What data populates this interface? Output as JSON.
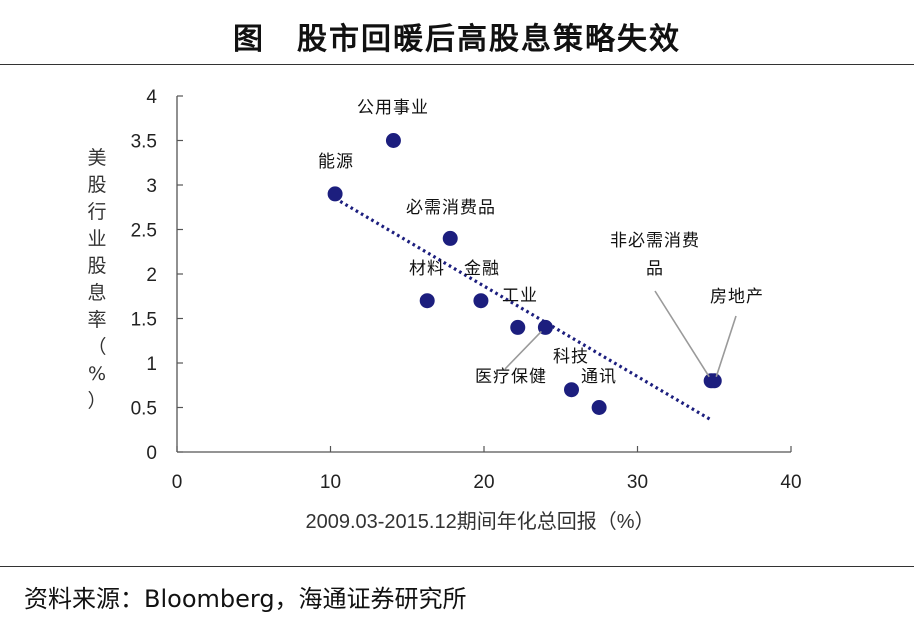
{
  "title": "图　股市回暖后高股息策略失效",
  "source": "资料来源：Bloomberg，海通证券研究所",
  "chart_data": {
    "type": "scatter",
    "xlabel": "2009.03-2015.12期间年化总回报（%）",
    "ylabel": "美股行业股息率（%）",
    "xlim": [
      0,
      40
    ],
    "ylim": [
      0,
      4
    ],
    "xticks": [
      0,
      10,
      20,
      30,
      40
    ],
    "yticks": [
      0,
      0.5,
      1,
      1.5,
      2,
      2.5,
      3,
      3.5,
      4
    ],
    "marker_color": "#1c1e7e",
    "trendline": {
      "style": "dotted",
      "color": "#1c1e7e",
      "x": [
        10.3,
        34.8
      ],
      "y": [
        2.85,
        0.36
      ]
    },
    "points": [
      {
        "label": "公用事业",
        "x": 14.1,
        "y": 3.5
      },
      {
        "label": "能源",
        "x": 10.3,
        "y": 2.9
      },
      {
        "label": "必需消费品",
        "x": 17.8,
        "y": 2.4
      },
      {
        "label": "材料",
        "x": 16.3,
        "y": 1.7
      },
      {
        "label": "金融",
        "x": 19.8,
        "y": 1.7
      },
      {
        "label": "工业",
        "x": 22.2,
        "y": 1.4
      },
      {
        "label": "医疗保健",
        "x": 24.0,
        "y": 1.4
      },
      {
        "label": "科技",
        "x": 25.7,
        "y": 0.7
      },
      {
        "label": "通讯",
        "x": 27.5,
        "y": 0.5
      },
      {
        "label": "非必需消费品",
        "x": 34.8,
        "y": 0.8
      },
      {
        "label": "房地产",
        "x": 35.0,
        "y": 0.8
      }
    ]
  }
}
